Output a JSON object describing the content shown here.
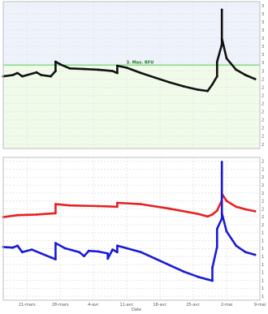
{
  "chart_data": [
    {
      "type": "line",
      "x_unit": "date",
      "xlim": [
        "2025-03-16",
        "2025-05-09"
      ],
      "ylim": [
        0,
        22
      ],
      "background_bands": [
        {
          "from": 12.5,
          "to": 22,
          "color": "#eef2fb"
        },
        {
          "from": 0,
          "to": 12.5,
          "color": "#f1fbea"
        }
      ],
      "threshold": {
        "value": 12.5,
        "label": "3. Max. RFU",
        "color": "#7ed67e"
      },
      "y_tick_labels": [
        "3",
        "3",
        "3",
        "3",
        "3",
        "3",
        "3",
        "3",
        "3",
        "2",
        "2",
        "2",
        "2",
        "2",
        "2",
        "2",
        "2",
        "2"
      ],
      "series": [
        {
          "color": "#111111",
          "points": [
            [
              "2025-03-16",
              10.8
            ],
            [
              "2025-03-18",
              11.0
            ],
            [
              "2025-03-19",
              11.3
            ],
            [
              "2025-03-20",
              10.8
            ],
            [
              "2025-03-23",
              11.4
            ],
            [
              "2025-03-24",
              11.0
            ],
            [
              "2025-03-26",
              10.8
            ],
            [
              "2025-03-27",
              11.6
            ],
            [
              "2025-03-27",
              13.0
            ],
            [
              "2025-03-28",
              12.6
            ],
            [
              "2025-03-30",
              12.0
            ],
            [
              "2025-04-02",
              11.9
            ],
            [
              "2025-04-05",
              11.8
            ],
            [
              "2025-04-08",
              11.6
            ],
            [
              "2025-04-09",
              11.3
            ],
            [
              "2025-04-09",
              12.4
            ],
            [
              "2025-04-11",
              12.1
            ],
            [
              "2025-04-14",
              11.3
            ],
            [
              "2025-04-17",
              10.6
            ],
            [
              "2025-04-20",
              9.9
            ],
            [
              "2025-04-23",
              9.3
            ],
            [
              "2025-04-26",
              8.8
            ],
            [
              "2025-04-28",
              8.6
            ],
            [
              "2025-04-29",
              9.6
            ],
            [
              "2025-04-30",
              10.8
            ],
            [
              "2025-04-30",
              13.0
            ],
            [
              "2025-05-01",
              15.6
            ],
            [
              "2025-05-01",
              20.8
            ],
            [
              "2025-05-01",
              16.5
            ],
            [
              "2025-05-02",
              13.5
            ],
            [
              "2025-05-04",
              11.8
            ],
            [
              "2025-05-06",
              11.0
            ],
            [
              "2025-05-08",
              10.4
            ]
          ]
        }
      ]
    },
    {
      "type": "line",
      "x_unit": "date",
      "xlim": [
        "2025-03-16",
        "2025-05-09"
      ],
      "ylim": [
        0,
        22
      ],
      "xlabel": "Date",
      "x_ticks": [
        "21-mars",
        "28-mars",
        "4-avr.",
        "11-avr.",
        "18-avr.",
        "25-avr.",
        "2-mai",
        "9-mai"
      ],
      "x_tick_dates": [
        "2025-03-21",
        "2025-03-28",
        "2025-04-04",
        "2025-04-11",
        "2025-04-18",
        "2025-04-25",
        "2025-05-02",
        "2025-05-09"
      ],
      "y_tick_labels": [
        "2",
        "2",
        "2",
        "2",
        "2",
        "2",
        "2",
        "2",
        "2",
        "1",
        "1",
        "1",
        "1",
        "1",
        "1",
        "1",
        "1",
        "1"
      ],
      "series": [
        {
          "color": "#e82020",
          "points": [
            [
              "2025-03-16",
              12.8
            ],
            [
              "2025-03-19",
              13.1
            ],
            [
              "2025-03-23",
              13.2
            ],
            [
              "2025-03-27",
              13.4
            ],
            [
              "2025-03-27",
              14.8
            ],
            [
              "2025-03-30",
              14.6
            ],
            [
              "2025-04-05",
              14.5
            ],
            [
              "2025-04-09",
              14.4
            ],
            [
              "2025-04-09",
              15.0
            ],
            [
              "2025-04-14",
              14.8
            ],
            [
              "2025-04-20",
              14.1
            ],
            [
              "2025-04-26",
              13.3
            ],
            [
              "2025-04-28",
              12.9
            ],
            [
              "2025-04-29",
              13.2
            ],
            [
              "2025-04-30",
              13.8
            ],
            [
              "2025-05-01",
              15.4
            ],
            [
              "2025-05-01",
              19.7
            ],
            [
              "2025-05-01",
              16.4
            ],
            [
              "2025-05-02",
              15.3
            ],
            [
              "2025-05-04",
              14.4
            ],
            [
              "2025-05-06",
              14.0
            ],
            [
              "2025-05-08",
              13.7
            ]
          ]
        },
        {
          "color": "#1a1ad6",
          "points": [
            [
              "2025-03-16",
              8.2
            ],
            [
              "2025-03-18",
              8.1
            ],
            [
              "2025-03-19",
              8.4
            ],
            [
              "2025-03-20",
              7.4
            ],
            [
              "2025-03-22",
              7.8
            ],
            [
              "2025-03-24",
              7.2
            ],
            [
              "2025-03-26",
              6.6
            ],
            [
              "2025-03-27",
              6.3
            ],
            [
              "2025-03-27",
              8.8
            ],
            [
              "2025-03-29",
              8.0
            ],
            [
              "2025-04-01",
              7.4
            ],
            [
              "2025-04-02",
              6.8
            ],
            [
              "2025-04-03",
              7.6
            ],
            [
              "2025-04-05",
              7.5
            ],
            [
              "2025-04-07",
              7.2
            ],
            [
              "2025-04-07",
              6.4
            ],
            [
              "2025-04-08",
              7.8
            ],
            [
              "2025-04-09",
              7.4
            ],
            [
              "2025-04-09",
              8.4
            ],
            [
              "2025-04-11",
              8.0
            ],
            [
              "2025-04-14",
              7.4
            ],
            [
              "2025-04-17",
              6.4
            ],
            [
              "2025-04-20",
              5.4
            ],
            [
              "2025-04-23",
              4.4
            ],
            [
              "2025-04-26",
              3.6
            ],
            [
              "2025-04-28",
              3.2
            ],
            [
              "2025-04-29",
              3.0
            ],
            [
              "2025-04-29",
              5.0
            ],
            [
              "2025-04-30",
              8.2
            ],
            [
              "2025-04-30",
              11.0
            ],
            [
              "2025-05-01",
              12.6
            ],
            [
              "2025-05-01",
              21.3
            ],
            [
              "2025-05-01",
              13.4
            ],
            [
              "2025-05-02",
              10.6
            ],
            [
              "2025-05-04",
              8.4
            ],
            [
              "2025-05-06",
              7.4
            ],
            [
              "2025-05-08",
              7.0
            ]
          ]
        }
      ]
    }
  ]
}
